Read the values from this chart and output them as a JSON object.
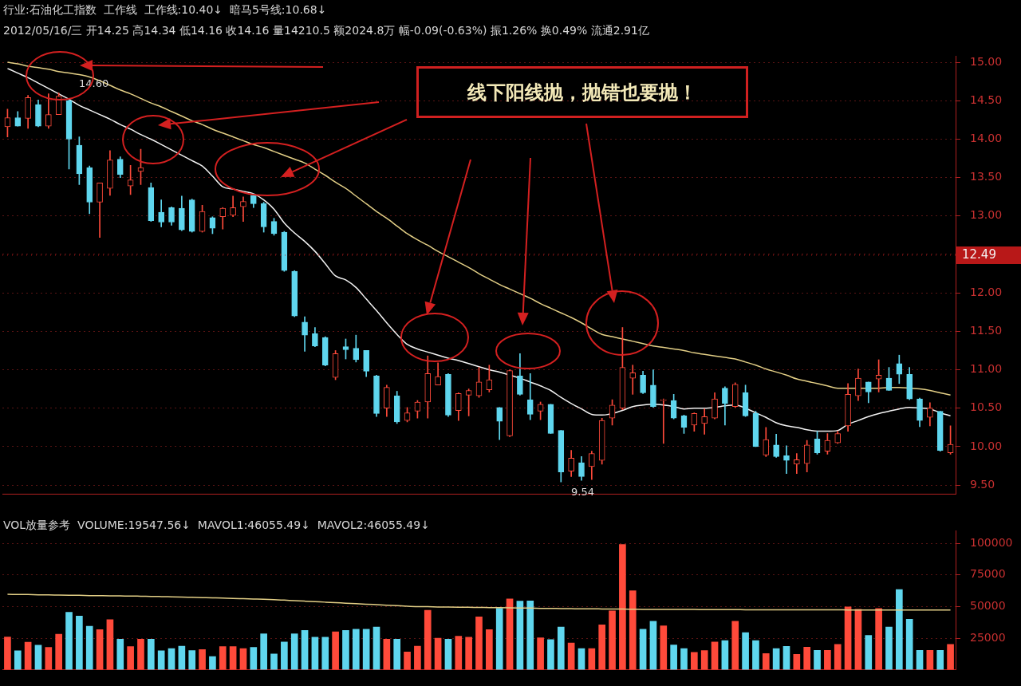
{
  "chart_data": [
    {
      "type": "candlestick",
      "categories": [
        null,
        null,
        null,
        null,
        null,
        null,
        null,
        null,
        null,
        null,
        null,
        null,
        null,
        null,
        null,
        null,
        null,
        null,
        null,
        null,
        null,
        null,
        null,
        null,
        null,
        null,
        null,
        null,
        null,
        null,
        null,
        null,
        null,
        null,
        null,
        null,
        null,
        null,
        null,
        null,
        null,
        null,
        null,
        null,
        null,
        null,
        null,
        null,
        null,
        null,
        null,
        null,
        null,
        null,
        null,
        null,
        null,
        null,
        null,
        null,
        null,
        null,
        null,
        null,
        null,
        null,
        null,
        null,
        null,
        null,
        null,
        null,
        null,
        null,
        null,
        null,
        null,
        null,
        null,
        null,
        null,
        null,
        null,
        null,
        null,
        null,
        null,
        null,
        null,
        null,
        null,
        null,
        null
      ],
      "ohlc": [
        [
          14.16,
          14.39,
          14.03,
          14.28
        ],
        [
          14.28,
          14.36,
          14.17,
          14.17
        ],
        [
          14.27,
          14.57,
          14.14,
          14.54
        ],
        [
          14.45,
          14.51,
          14.16,
          14.17
        ],
        [
          14.17,
          14.59,
          14.14,
          14.32
        ],
        [
          14.32,
          14.6,
          14.32,
          14.56
        ],
        [
          14.5,
          14.51,
          13.61,
          14.0
        ],
        [
          13.92,
          14.03,
          13.41,
          13.55
        ],
        [
          13.63,
          13.65,
          13.03,
          13.18
        ],
        [
          13.18,
          13.43,
          12.72,
          13.43
        ],
        [
          13.36,
          13.85,
          13.27,
          13.73
        ],
        [
          13.74,
          13.77,
          13.5,
          13.54
        ],
        [
          13.39,
          13.66,
          13.28,
          13.47
        ],
        [
          13.58,
          13.87,
          13.41,
          13.63
        ],
        [
          13.37,
          13.43,
          12.93,
          12.94
        ],
        [
          13.05,
          13.21,
          12.86,
          12.92
        ],
        [
          13.11,
          13.12,
          12.88,
          12.92
        ],
        [
          13.1,
          13.26,
          12.81,
          12.82
        ],
        [
          13.21,
          13.22,
          12.79,
          12.8
        ],
        [
          12.8,
          13.14,
          12.79,
          13.06
        ],
        [
          12.98,
          12.99,
          12.77,
          12.84
        ],
        [
          12.99,
          13.11,
          12.83,
          13.1
        ],
        [
          13.01,
          13.26,
          12.99,
          13.11
        ],
        [
          13.12,
          13.25,
          12.93,
          13.19
        ],
        [
          13.27,
          13.29,
          13.11,
          13.16
        ],
        [
          13.16,
          13.18,
          12.79,
          12.86
        ],
        [
          12.93,
          12.97,
          12.75,
          12.77
        ],
        [
          12.79,
          12.8,
          12.28,
          12.29
        ],
        [
          12.28,
          12.29,
          11.69,
          11.7
        ],
        [
          11.62,
          11.69,
          11.24,
          11.45
        ],
        [
          11.47,
          11.55,
          11.3,
          11.31
        ],
        [
          11.42,
          11.43,
          11.05,
          11.06
        ],
        [
          10.9,
          11.25,
          10.87,
          11.21
        ],
        [
          11.3,
          11.4,
          11.14,
          11.26
        ],
        [
          11.28,
          11.45,
          11.1,
          11.13
        ],
        [
          11.25,
          11.25,
          10.91,
          10.98
        ],
        [
          10.92,
          10.93,
          10.39,
          10.43
        ],
        [
          10.5,
          10.8,
          10.39,
          10.77
        ],
        [
          10.66,
          10.72,
          10.3,
          10.32
        ],
        [
          10.34,
          10.51,
          10.32,
          10.44
        ],
        [
          10.46,
          10.6,
          10.37,
          10.58
        ],
        [
          10.58,
          11.18,
          10.37,
          10.95
        ],
        [
          10.8,
          11.09,
          10.8,
          10.91
        ],
        [
          10.94,
          10.95,
          10.39,
          10.41
        ],
        [
          10.47,
          10.7,
          10.34,
          10.69
        ],
        [
          10.67,
          10.75,
          10.4,
          10.73
        ],
        [
          10.66,
          11.03,
          10.64,
          10.84
        ],
        [
          10.74,
          11.06,
          10.71,
          10.87
        ],
        [
          10.51,
          10.51,
          10.09,
          10.33
        ],
        [
          10.14,
          11.0,
          10.13,
          10.99
        ],
        [
          10.92,
          11.21,
          10.67,
          10.68
        ],
        [
          10.61,
          10.95,
          10.35,
          10.42
        ],
        [
          10.46,
          10.58,
          10.35,
          10.55
        ],
        [
          10.55,
          10.55,
          10.17,
          10.17
        ],
        [
          10.21,
          10.21,
          9.54,
          9.67
        ],
        [
          9.68,
          9.95,
          9.61,
          9.85
        ],
        [
          9.79,
          9.87,
          9.56,
          9.61
        ],
        [
          9.74,
          9.94,
          9.57,
          9.91
        ],
        [
          9.82,
          10.37,
          9.77,
          10.34
        ],
        [
          10.37,
          10.61,
          10.28,
          10.54
        ],
        [
          10.5,
          11.55,
          10.48,
          11.03
        ],
        [
          10.89,
          11.06,
          10.68,
          10.96
        ],
        [
          10.93,
          10.98,
          10.69,
          10.7
        ],
        [
          10.8,
          11.0,
          10.51,
          10.52
        ],
        [
          10.6,
          10.62,
          10.04,
          10.61
        ],
        [
          10.6,
          10.68,
          10.36,
          10.37
        ],
        [
          10.4,
          10.41,
          10.17,
          10.25
        ],
        [
          10.28,
          10.44,
          10.2,
          10.43
        ],
        [
          10.3,
          10.49,
          10.16,
          10.39
        ],
        [
          10.37,
          10.7,
          10.36,
          10.62
        ],
        [
          10.76,
          10.78,
          10.28,
          10.56
        ],
        [
          10.52,
          10.83,
          10.51,
          10.81
        ],
        [
          10.7,
          10.8,
          10.39,
          10.4
        ],
        [
          10.43,
          10.46,
          10.0,
          10.0
        ],
        [
          9.89,
          10.25,
          9.87,
          10.09
        ],
        [
          10.02,
          10.16,
          9.86,
          9.87
        ],
        [
          9.88,
          10.01,
          9.65,
          9.82
        ],
        [
          9.77,
          9.91,
          9.65,
          9.83
        ],
        [
          9.78,
          10.08,
          9.67,
          10.02
        ],
        [
          10.1,
          10.2,
          9.9,
          9.92
        ],
        [
          9.94,
          10.17,
          9.9,
          10.08
        ],
        [
          10.05,
          10.2,
          10.04,
          10.17
        ],
        [
          10.27,
          10.82,
          10.2,
          10.68
        ],
        [
          10.66,
          11.01,
          10.6,
          10.89
        ],
        [
          10.84,
          10.84,
          10.57,
          10.71
        ],
        [
          10.88,
          11.13,
          10.71,
          10.93
        ],
        [
          10.89,
          11.03,
          10.73,
          10.73
        ],
        [
          11.08,
          11.19,
          10.82,
          10.94
        ],
        [
          10.94,
          11.03,
          10.61,
          10.62
        ],
        [
          10.62,
          10.63,
          10.26,
          10.34
        ],
        [
          10.38,
          10.57,
          10.27,
          10.5
        ],
        [
          10.46,
          10.46,
          9.94,
          9.95
        ],
        [
          9.92,
          10.27,
          9.9,
          10.03
        ]
      ],
      "colors": [
        "#ff4a3a",
        "#5fd6ee",
        "#ff4a3a",
        "#5fd6ee",
        "#ff4a3a",
        "#ff4a3a",
        "#5fd6ee",
        "#5fd6ee",
        "#5fd6ee",
        "#ff4a3a",
        "#ff4a3a",
        "#5fd6ee",
        "#ff4a3a",
        "#ff4a3a",
        "#5fd6ee",
        "#5fd6ee",
        "#5fd6ee",
        "#5fd6ee",
        "#5fd6ee",
        "#ff4a3a",
        "#5fd6ee",
        "#ff4a3a",
        "#ff4a3a",
        "#ff4a3a",
        "#5fd6ee",
        "#5fd6ee",
        "#5fd6ee",
        "#5fd6ee",
        "#5fd6ee",
        "#5fd6ee",
        "#5fd6ee",
        "#5fd6ee",
        "#ff4a3a",
        "#5fd6ee",
        "#5fd6ee",
        "#5fd6ee",
        "#5fd6ee",
        "#ff4a3a",
        "#5fd6ee",
        "#ff4a3a",
        "#ff4a3a",
        "#ff4a3a",
        "#ff4a3a",
        "#5fd6ee",
        "#ff4a3a",
        "#ff4a3a",
        "#ff4a3a",
        "#ff4a3a",
        "#5fd6ee",
        "#ff4a3a",
        "#5fd6ee",
        "#5fd6ee",
        "#ff4a3a",
        "#5fd6ee",
        "#5fd6ee",
        "#ff4a3a",
        "#5fd6ee",
        "#ff4a3a",
        "#ff4a3a",
        "#ff4a3a",
        "#ff4a3a",
        "#ff4a3a",
        "#5fd6ee",
        "#5fd6ee",
        "#ff4a3a",
        "#5fd6ee",
        "#5fd6ee",
        "#ff4a3a",
        "#ff4a3a",
        "#ff4a3a",
        "#5fd6ee",
        "#ff4a3a",
        "#5fd6ee",
        "#5fd6ee",
        "#ff4a3a",
        "#5fd6ee",
        "#5fd6ee",
        "#ff4a3a",
        "#ff4a3a",
        "#5fd6ee",
        "#ff4a3a",
        "#ff4a3a",
        "#ff4a3a",
        "#ff4a3a",
        "#5fd6ee",
        "#ff4a3a",
        "#5fd6ee",
        "#5fd6ee",
        "#5fd6ee",
        "#5fd6ee",
        "#ff4a3a",
        "#5fd6ee",
        "#ff4a3a"
      ],
      "series": [
        {
          "type": "line",
          "color": "#f2f2f2",
          "values": [
            14.92,
            14.86,
            14.8,
            14.73,
            14.66,
            14.59,
            14.52,
            14.44,
            14.38,
            14.32,
            14.26,
            14.19,
            14.13,
            14.06,
            14.0,
            13.93,
            13.86,
            13.79,
            13.72,
            13.65,
            13.52,
            13.38,
            13.35,
            13.32,
            13.29,
            13.21,
            13.09,
            12.91,
            12.78,
            12.67,
            12.54,
            12.38,
            12.22,
            12.17,
            12.07,
            11.92,
            11.77,
            11.61,
            11.46,
            11.33,
            11.27,
            11.23,
            11.19,
            11.15,
            11.12,
            11.08,
            11.04,
            11.0,
            10.97,
            10.93,
            10.89,
            10.84,
            10.79,
            10.73,
            10.64,
            10.56,
            10.49,
            10.42,
            10.41,
            10.43,
            10.47,
            10.52,
            10.54,
            10.55,
            10.54,
            10.52,
            10.49,
            10.5,
            10.5,
            10.51,
            10.53,
            10.54,
            10.5,
            10.44,
            10.38,
            10.31,
            10.27,
            10.25,
            10.22,
            10.2,
            10.2,
            10.21,
            10.29,
            10.34,
            10.39,
            10.43,
            10.46,
            10.49,
            10.51,
            10.5,
            10.49,
            10.44,
            10.4
          ]
        },
        {
          "type": "line",
          "color": "#e3cf86",
          "values": [
            15.0,
            14.98,
            14.95,
            14.93,
            14.91,
            14.88,
            14.86,
            14.84,
            14.81,
            14.76,
            14.7,
            14.64,
            14.59,
            14.53,
            14.47,
            14.42,
            14.36,
            14.3,
            14.24,
            14.19,
            14.13,
            14.08,
            14.03,
            13.98,
            13.93,
            13.89,
            13.84,
            13.79,
            13.74,
            13.69,
            13.61,
            13.53,
            13.44,
            13.36,
            13.26,
            13.16,
            13.06,
            12.97,
            12.87,
            12.77,
            12.69,
            12.62,
            12.54,
            12.47,
            12.4,
            12.33,
            12.25,
            12.18,
            12.11,
            12.05,
            11.99,
            11.93,
            11.86,
            11.8,
            11.74,
            11.68,
            11.61,
            11.53,
            11.46,
            11.43,
            11.4,
            11.37,
            11.34,
            11.31,
            11.29,
            11.27,
            11.25,
            11.22,
            11.2,
            11.18,
            11.16,
            11.14,
            11.1,
            11.06,
            11.01,
            10.97,
            10.93,
            10.88,
            10.85,
            10.82,
            10.79,
            10.76,
            10.76,
            10.76,
            10.76,
            10.76,
            10.77,
            10.77,
            10.76,
            10.75,
            10.73,
            10.7,
            10.67
          ]
        }
      ],
      "ylim": [
        9.38,
        15.08
      ],
      "yticks": [
        {
          "value": 9.5,
          "label": "9.50"
        },
        {
          "value": 10,
          "label": "10.00"
        },
        {
          "value": 10.5,
          "label": "10.50"
        },
        {
          "value": 11,
          "label": "11.00"
        },
        {
          "value": 11.5,
          "label": "11.50"
        },
        {
          "value": 12,
          "label": "12.00"
        },
        {
          "value": 12.5,
          "label": null
        },
        {
          "value": 13,
          "label": "13.00"
        },
        {
          "value": 13.5,
          "label": "13.50"
        },
        {
          "value": 14,
          "label": "14.00"
        },
        {
          "value": 14.5,
          "label": "14.50"
        },
        {
          "value": 15,
          "label": "15.00"
        }
      ],
      "tick_labels": "y",
      "grid": "y",
      "ref_lines": [
        {
          "axis": "y",
          "value": 12.49,
          "label": "12.49",
          "color": "#b81818"
        }
      ],
      "annotations": [
        "行业:石油化工指数  工作线  工作线:10.40↓  暗马5号线:10.68↓",
        "2012/05/16/三 开14.25 高14.34 低14.16 收14.16 量14210.5 额2024.8万 幅-0.09(-0.63%) 振1.26% 换0.49% 流通2.91亿",
        "14.60",
        "9.54",
        "线下阳线抛，抛错也要抛！"
      ]
    },
    {
      "type": "bar",
      "categories": [
        null,
        null,
        null,
        null,
        null,
        null,
        null,
        null,
        null,
        null,
        null,
        null,
        null,
        null,
        null,
        null,
        null,
        null,
        null,
        null,
        null,
        null,
        null,
        null,
        null,
        null,
        null,
        null,
        null,
        null,
        null,
        null,
        null,
        null,
        null,
        null,
        null,
        null,
        null,
        null,
        null,
        null,
        null,
        null,
        null,
        null,
        null,
        null,
        null,
        null,
        null,
        null,
        null,
        null,
        null,
        null,
        null,
        null,
        null,
        null,
        null,
        null,
        null,
        null,
        null,
        null,
        null,
        null,
        null,
        null,
        null,
        null,
        null,
        null,
        null,
        null,
        null,
        null,
        null,
        null,
        null,
        null,
        null,
        null,
        null,
        null,
        null,
        null,
        null,
        null,
        null,
        null,
        null
      ],
      "series": [
        {
          "type": "bar",
          "values": [
            25900,
            15000,
            21800,
            19500,
            17700,
            28100,
            45400,
            42400,
            34500,
            31800,
            39700,
            24100,
            18400,
            24100,
            24100,
            15000,
            16800,
            18600,
            15200,
            15900,
            10400,
            18400,
            18400,
            16800,
            17700,
            28400,
            12500,
            22000,
            28400,
            31100,
            25700,
            25700,
            30000,
            31100,
            32000,
            32000,
            33800,
            24100,
            24100,
            14100,
            18600,
            47000,
            25000,
            24100,
            26600,
            25700,
            41800,
            31800,
            48600,
            56100,
            54300,
            54400,
            25300,
            23900,
            33800,
            21100,
            16800,
            16800,
            35500,
            46600,
            99200,
            62500,
            32000,
            38300,
            34800,
            19600,
            16800,
            13700,
            15100,
            22000,
            23000,
            38300,
            29400,
            23000,
            12800,
            16800,
            18500,
            12100,
            17800,
            15400,
            15400,
            20100,
            49700,
            47800,
            27200,
            48500,
            33800,
            63400,
            40000,
            15400,
            15400,
            15400,
            20100
          ],
          "colors": [
            "#ff4a3a",
            "#5fd6ee",
            "#ff4a3a",
            "#5fd6ee",
            "#ff4a3a",
            "#ff4a3a",
            "#5fd6ee",
            "#5fd6ee",
            "#5fd6ee",
            "#ff4a3a",
            "#ff4a3a",
            "#5fd6ee",
            "#ff4a3a",
            "#ff4a3a",
            "#5fd6ee",
            "#5fd6ee",
            "#5fd6ee",
            "#5fd6ee",
            "#5fd6ee",
            "#ff4a3a",
            "#5fd6ee",
            "#ff4a3a",
            "#ff4a3a",
            "#ff4a3a",
            "#5fd6ee",
            "#5fd6ee",
            "#5fd6ee",
            "#5fd6ee",
            "#5fd6ee",
            "#5fd6ee",
            "#5fd6ee",
            "#5fd6ee",
            "#ff4a3a",
            "#5fd6ee",
            "#5fd6ee",
            "#5fd6ee",
            "#5fd6ee",
            "#ff4a3a",
            "#5fd6ee",
            "#ff4a3a",
            "#ff4a3a",
            "#ff4a3a",
            "#ff4a3a",
            "#5fd6ee",
            "#ff4a3a",
            "#ff4a3a",
            "#ff4a3a",
            "#ff4a3a",
            "#5fd6ee",
            "#ff4a3a",
            "#5fd6ee",
            "#5fd6ee",
            "#ff4a3a",
            "#5fd6ee",
            "#5fd6ee",
            "#ff4a3a",
            "#5fd6ee",
            "#ff4a3a",
            "#ff4a3a",
            "#ff4a3a",
            "#ff4a3a",
            "#ff4a3a",
            "#5fd6ee",
            "#5fd6ee",
            "#ff4a3a",
            "#5fd6ee",
            "#5fd6ee",
            "#ff4a3a",
            "#ff4a3a",
            "#ff4a3a",
            "#5fd6ee",
            "#ff4a3a",
            "#5fd6ee",
            "#5fd6ee",
            "#ff4a3a",
            "#5fd6ee",
            "#5fd6ee",
            "#ff4a3a",
            "#ff4a3a",
            "#5fd6ee",
            "#ff4a3a",
            "#ff4a3a",
            "#ff4a3a",
            "#ff4a3a",
            "#5fd6ee",
            "#ff4a3a",
            "#5fd6ee",
            "#5fd6ee",
            "#5fd6ee",
            "#5fd6ee",
            "#ff4a3a",
            "#5fd6ee",
            "#ff4a3a"
          ]
        },
        {
          "type": "line",
          "color": "#e3cf86",
          "values": [
            59700,
            59600,
            59500,
            59300,
            59200,
            59100,
            59000,
            58900,
            58700,
            58600,
            58500,
            58400,
            58300,
            58200,
            58000,
            57900,
            57700,
            57500,
            57300,
            57100,
            56900,
            56700,
            56400,
            56200,
            56000,
            55800,
            55500,
            55100,
            54700,
            54300,
            53900,
            53500,
            53100,
            52700,
            52300,
            51900,
            51500,
            51100,
            50700,
            50300,
            50000,
            49900,
            49700,
            49600,
            49500,
            49400,
            49300,
            49200,
            49100,
            49000,
            48900,
            48800,
            48600,
            48500,
            48400,
            48300,
            48200,
            48200,
            48100,
            48000,
            48000,
            47900,
            47800,
            47800,
            47700,
            47700,
            47700,
            47700,
            47600,
            47600,
            47600,
            47600,
            47500,
            47500,
            47500,
            47500,
            47500,
            47400,
            47400,
            47400,
            47400,
            47400,
            47300,
            47300,
            47300,
            47300,
            47300,
            47300,
            47200,
            47200,
            47200,
            47200,
            47200
          ]
        }
      ],
      "ylim": [
        0,
        110000
      ],
      "yticks": [
        25000,
        50000,
        75000,
        100000
      ],
      "tick_labels": "y",
      "grid": "y",
      "annotations": [
        "VOL放量参考  VOLUME:19547.56↓  MAVOL1:46055.49↓  MAVOL2:46055.49↓"
      ]
    }
  ]
}
